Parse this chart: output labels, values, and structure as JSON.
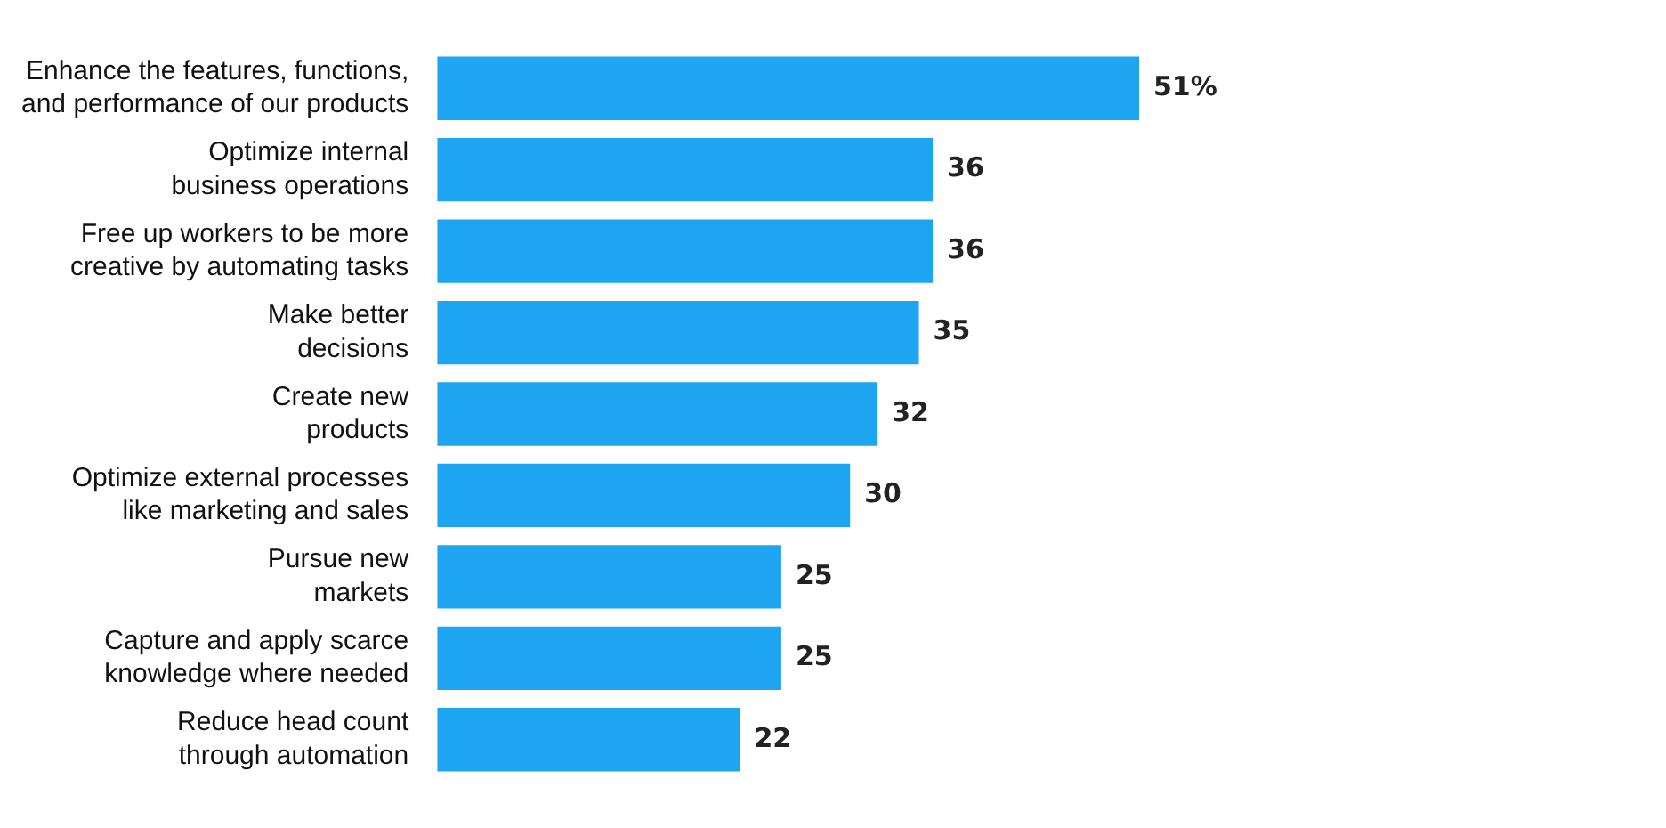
{
  "chart_data": {
    "type": "bar",
    "orientation": "horizontal",
    "categories": [
      "Enhance the features, functions, and performance of our products",
      "Optimize internal business operations",
      "Free up workers to be more creative by automating tasks",
      "Make better decisions",
      "Create new products",
      "Optimize external processes like marketing and sales",
      "Pursue new markets",
      "Capture and apply scarce knowledge where needed",
      "Reduce head count through automation"
    ],
    "values": [
      51,
      36,
      36,
      35,
      32,
      30,
      25,
      25,
      22
    ],
    "value_labels": [
      "51%",
      "36",
      "36",
      "35",
      "32",
      "30",
      "25",
      "25",
      "22"
    ],
    "color": "#1ea5f2",
    "tick_labels": "y"
  }
}
